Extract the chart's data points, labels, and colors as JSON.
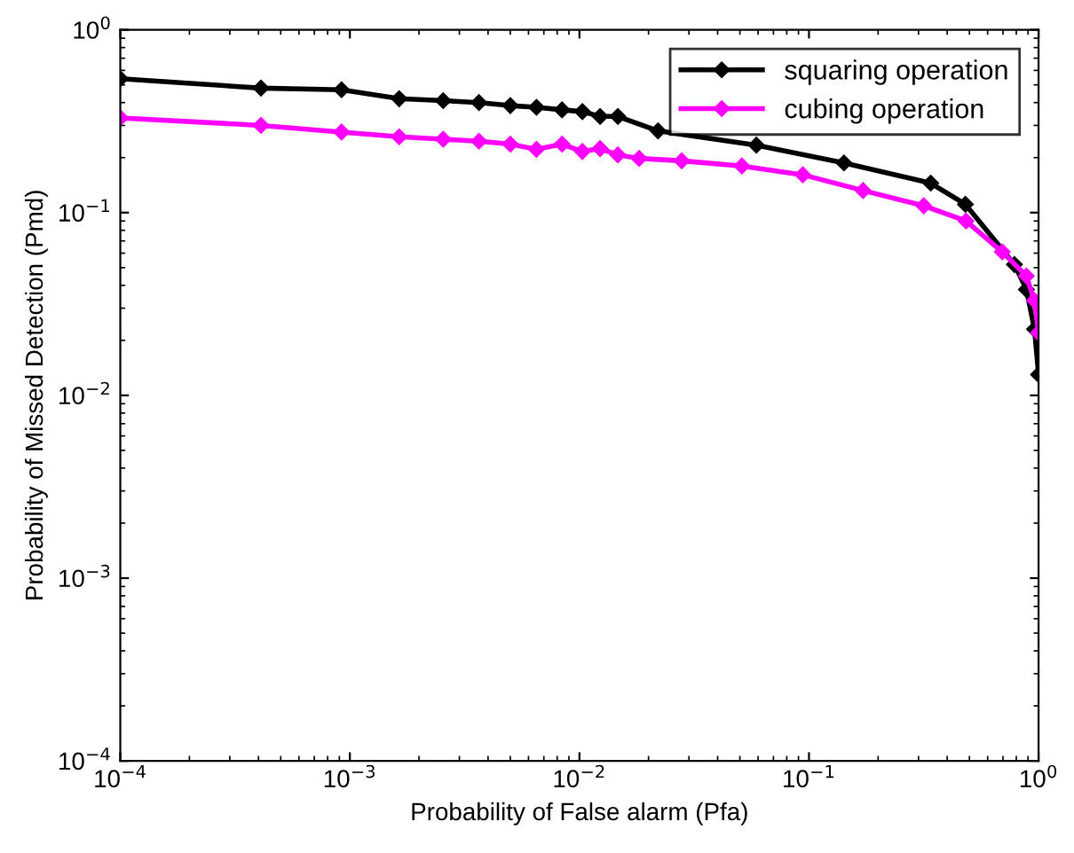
{
  "chart_data": {
    "type": "line",
    "xlabel": "Probability of False alarm (Pfa)",
    "ylabel": "Probability of Missed Detection (Pmd)",
    "log": "xy",
    "xlim": [
      0.0001,
      1
    ],
    "ylim": [
      0.0001,
      1
    ],
    "xticks": [
      {
        "value": 0.0001,
        "label": "10$^{−4}$"
      },
      {
        "value": 0.001,
        "label": "10$^{−3}$"
      },
      {
        "value": 0.01,
        "label": "10$^{−2}$"
      },
      {
        "value": 0.1,
        "label": "10$^{−1}$"
      },
      {
        "value": 1,
        "label": "10$^{0}$"
      }
    ],
    "yticks": [
      {
        "value": 0.0001,
        "label": "10$^{−4}$"
      },
      {
        "value": 0.001,
        "label": "10$^{−3}$"
      },
      {
        "value": 0.01,
        "label": "10$^{−2}$"
      },
      {
        "value": 0.1,
        "label": "10$^{−1}$"
      },
      {
        "value": 1,
        "label": "10$^{0}$"
      }
    ],
    "grid": false,
    "legend": "top right",
    "marker": "diamond",
    "line_style": "solid",
    "series": [
      {
        "name": "squaring operation",
        "color": "#000000",
        "x": [
          0.0001,
          0.00041,
          0.00092,
          0.00164,
          0.00255,
          0.00365,
          0.005,
          0.0065,
          0.0084,
          0.0103,
          0.0123,
          0.0147,
          0.022,
          0.059,
          0.142,
          0.339,
          0.48,
          0.785,
          0.885,
          0.96,
          1.0
        ],
        "values": [
          0.54,
          0.48,
          0.47,
          0.42,
          0.41,
          0.4,
          0.385,
          0.377,
          0.365,
          0.357,
          0.336,
          0.336,
          0.28,
          0.234,
          0.187,
          0.145,
          0.111,
          0.052,
          0.038,
          0.023,
          0.013
        ]
      },
      {
        "name": "cubing operation",
        "color": "#ff00ff",
        "x": [
          0.0001,
          0.00041,
          0.00092,
          0.00164,
          0.00255,
          0.00365,
          0.005,
          0.0065,
          0.0084,
          0.0103,
          0.0123,
          0.0147,
          0.0182,
          0.0279,
          0.051,
          0.094,
          0.172,
          0.316,
          0.483,
          0.695,
          0.885,
          0.96,
          1.0
        ],
        "values": [
          0.33,
          0.3,
          0.276,
          0.26,
          0.252,
          0.246,
          0.237,
          0.222,
          0.237,
          0.216,
          0.224,
          0.207,
          0.198,
          0.192,
          0.18,
          0.161,
          0.132,
          0.109,
          0.09,
          0.061,
          0.045,
          0.033,
          0.022
        ]
      }
    ]
  }
}
